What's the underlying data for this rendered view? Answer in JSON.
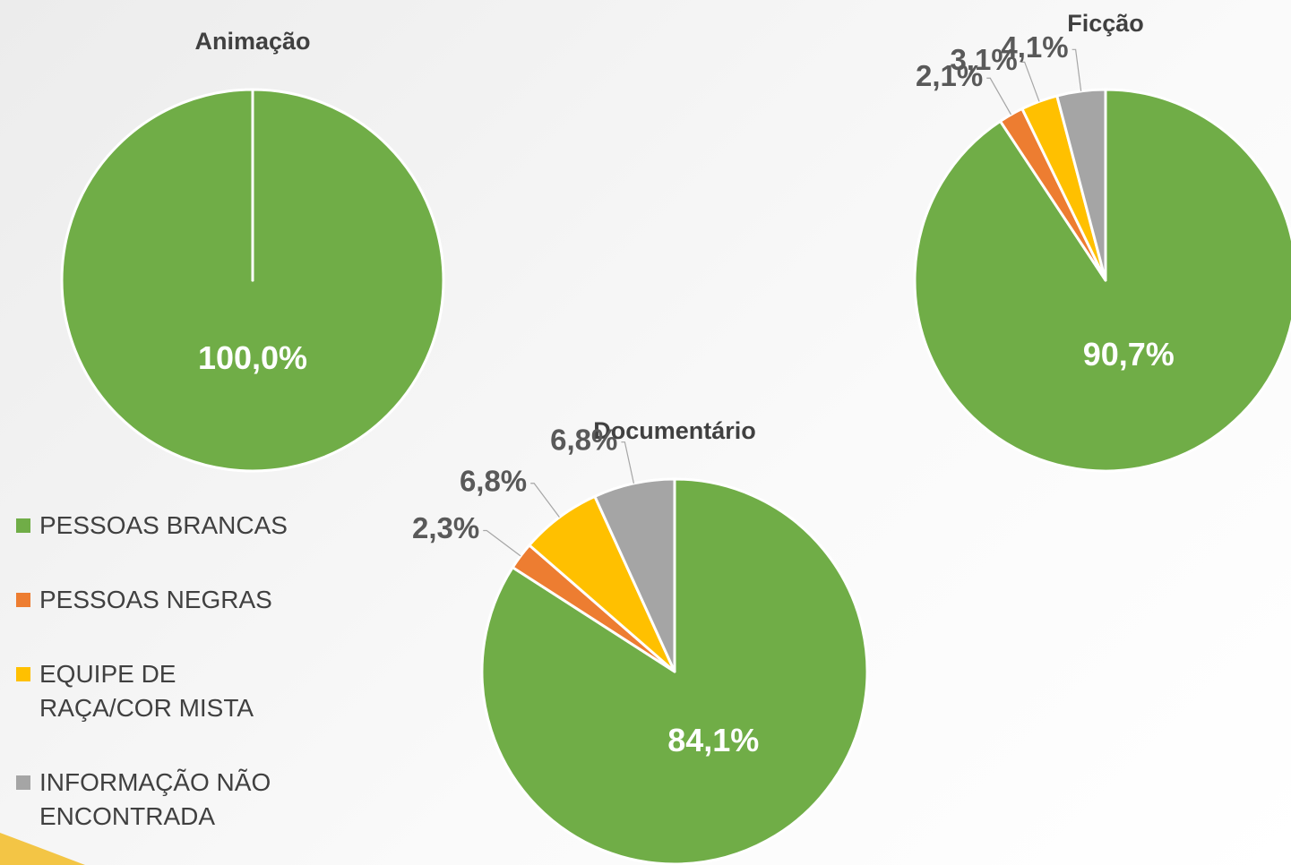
{
  "chart_data": [
    {
      "type": "pie",
      "title": "Animação",
      "categories": [
        "PESSOAS BRANCAS",
        "PESSOAS NEGRAS",
        "EQUIPE DE RAÇA/COR MISTA",
        "INFORMAÇÃO NÃO ENCONTRADA"
      ],
      "values": [
        100,
        0,
        0,
        0
      ],
      "value_labels": [
        "100,0%",
        null,
        null,
        null
      ],
      "colors": [
        "#70ad47",
        "#ed7d31",
        "#ffc000",
        "#a5a5a5"
      ],
      "legend": "left"
    },
    {
      "type": "pie",
      "title": "Ficção",
      "categories": [
        "PESSOAS BRANCAS",
        "PESSOAS NEGRAS",
        "EQUIPE DE RAÇA/COR MISTA",
        "INFORMAÇÃO NÃO ENCONTRADA"
      ],
      "values": [
        90.7,
        2.1,
        3.1,
        4.1
      ],
      "value_labels": [
        "90,7%",
        "2,1%",
        "3,1%",
        "4,1%"
      ],
      "colors": [
        "#70ad47",
        "#ed7d31",
        "#ffc000",
        "#a5a5a5"
      ]
    },
    {
      "type": "pie",
      "title": "Documentário",
      "categories": [
        "PESSOAS BRANCAS",
        "PESSOAS NEGRAS",
        "EQUIPE DE RAÇA/COR MISTA",
        "INFORMAÇÃO NÃO ENCONTRADA"
      ],
      "values": [
        84.1,
        2.3,
        6.8,
        6.8
      ],
      "value_labels": [
        "84,1%",
        "2,3%",
        "6,8%",
        "6,8%"
      ],
      "colors": [
        "#70ad47",
        "#ed7d31",
        "#ffc000",
        "#a5a5a5"
      ]
    }
  ]
}
